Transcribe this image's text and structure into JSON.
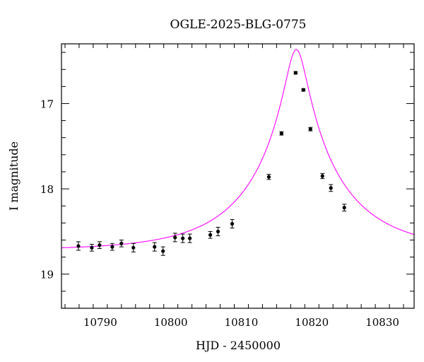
{
  "chart_data": {
    "type": "scatter",
    "title": "OGLE-2025-BLG-0775",
    "xlabel": "HJD - 2450000",
    "ylabel": "I magnitude",
    "xlim": [
      10784.5,
      10834.5
    ],
    "ylim": [
      19.4,
      16.3
    ],
    "y_inverted": true,
    "grid": false,
    "x_ticks": [
      10790,
      10800,
      10810,
      10820,
      10830
    ],
    "x_tick_labels": [
      "10790",
      "10800",
      "10810",
      "10820",
      "10830"
    ],
    "y_ticks": [
      17,
      18,
      19
    ],
    "y_tick_labels": [
      "17",
      "18",
      "19"
    ],
    "series": [
      {
        "kind": "points_with_errorbars",
        "color": "#000000",
        "points": [
          {
            "x": 10786.9,
            "y": 18.67,
            "err": 0.05
          },
          {
            "x": 10788.8,
            "y": 18.69,
            "err": 0.04
          },
          {
            "x": 10789.9,
            "y": 18.66,
            "err": 0.04
          },
          {
            "x": 10791.7,
            "y": 18.68,
            "err": 0.04
          },
          {
            "x": 10793.0,
            "y": 18.64,
            "err": 0.04
          },
          {
            "x": 10794.7,
            "y": 18.69,
            "err": 0.05
          },
          {
            "x": 10797.7,
            "y": 18.68,
            "err": 0.05
          },
          {
            "x": 10798.9,
            "y": 18.73,
            "err": 0.05
          },
          {
            "x": 10800.6,
            "y": 18.57,
            "err": 0.05
          },
          {
            "x": 10801.7,
            "y": 18.58,
            "err": 0.05
          },
          {
            "x": 10802.7,
            "y": 18.58,
            "err": 0.05
          },
          {
            "x": 10805.6,
            "y": 18.54,
            "err": 0.04
          },
          {
            "x": 10806.7,
            "y": 18.5,
            "err": 0.05
          },
          {
            "x": 10808.7,
            "y": 18.41,
            "err": 0.05
          },
          {
            "x": 10813.9,
            "y": 17.86,
            "err": 0.03
          },
          {
            "x": 10815.7,
            "y": 17.35,
            "err": 0.02
          },
          {
            "x": 10817.7,
            "y": 16.64,
            "err": 0.015
          },
          {
            "x": 10818.8,
            "y": 16.84,
            "err": 0.015
          },
          {
            "x": 10819.8,
            "y": 17.3,
            "err": 0.02
          },
          {
            "x": 10821.5,
            "y": 17.85,
            "err": 0.03
          },
          {
            "x": 10822.7,
            "y": 17.99,
            "err": 0.04
          },
          {
            "x": 10824.6,
            "y": 18.22,
            "err": 0.04
          }
        ]
      },
      {
        "kind": "model_curve",
        "color": "#ff00ff",
        "model": {
          "t0": 10817.8,
          "tE": 12.8,
          "u0": 0.115,
          "baseline": 18.72
        }
      }
    ]
  }
}
